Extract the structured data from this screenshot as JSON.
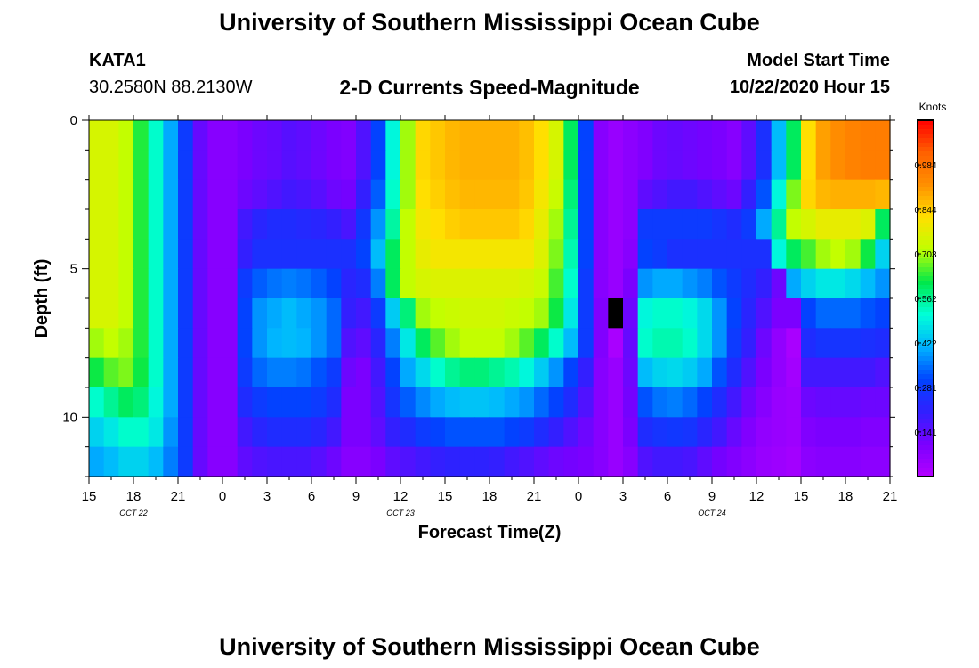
{
  "header": {
    "title_top": "University of Southern Mississippi Ocean Cube",
    "title_bottom": "University of Southern Mississippi Ocean Cube",
    "station": "KATA1",
    "coords": "30.2580N 88.2130W",
    "plot_title": "2-D Currents Speed-Magnitude",
    "model_start_label": "Model Start Time",
    "model_start_value": "10/22/2020 Hour 15"
  },
  "colors": {
    "background": "#ffffff",
    "no_data": "#000000",
    "colormap": [
      "#b400ff",
      "#7a00ff",
      "#3020ff",
      "#0044ff",
      "#00b4ff",
      "#00ffd8",
      "#00e84a",
      "#c0ff00",
      "#ffe000",
      "#ff9000",
      "#ff6000",
      "#ff0000"
    ]
  },
  "chart_data": {
    "type": "heatmap",
    "title": "2-D Currents Speed-Magnitude",
    "xlabel": "Forecast Time(Z)",
    "ylabel": "Depth (ft)",
    "x_range_hours_from_oct22_15z": [
      0,
      54
    ],
    "y_range_ft": [
      0,
      12
    ],
    "y_inverted": true,
    "x_tick_labels": [
      "15",
      "18",
      "21",
      "0",
      "3",
      "6",
      "9",
      "12",
      "15",
      "18",
      "21",
      "0",
      "3",
      "6",
      "9",
      "12",
      "15",
      "18",
      "21"
    ],
    "y_tick_labels": [
      "0",
      "5",
      "10"
    ],
    "date_labels": [
      {
        "text": "OCT  22",
        "after_tick": "18"
      },
      {
        "text": "OCT  23",
        "after_tick": "12"
      },
      {
        "text": "OCT  24",
        "after_tick": "9"
      }
    ],
    "colorbar": {
      "label": "Knots",
      "tick_labels": [
        "0.984",
        "0.844",
        "0.703",
        "0.562",
        "0.422",
        "0.281",
        "0.141"
      ],
      "range": [
        0,
        1.125
      ]
    },
    "depth_bins_ft": [
      0,
      1,
      2,
      3,
      4,
      5,
      6,
      7,
      8,
      9,
      10,
      11
    ],
    "hours": [
      0,
      1,
      2,
      3,
      4,
      5,
      6,
      7,
      8,
      9,
      10,
      11,
      12,
      13,
      14,
      15,
      16,
      17,
      18,
      19,
      20,
      21,
      22,
      23,
      24,
      25,
      26,
      27,
      28,
      29,
      30,
      31,
      32,
      33,
      34,
      35,
      36,
      37,
      38,
      39,
      40,
      41,
      42,
      43,
      44,
      45,
      46,
      47,
      48,
      49,
      50,
      51,
      52,
      53
    ],
    "speed_knots_rows_by_depth": [
      [
        0.75,
        0.75,
        0.72,
        0.63,
        0.52,
        0.4,
        0.28,
        0.13,
        0.08,
        0.08,
        0.1,
        0.12,
        0.13,
        0.15,
        0.14,
        0.12,
        0.1,
        0.09,
        0.16,
        0.3,
        0.5,
        0.7,
        0.83,
        0.85,
        0.87,
        0.88,
        0.88,
        0.88,
        0.88,
        0.86,
        0.82,
        0.75,
        0.6,
        0.3,
        0.08,
        0.05,
        0.07,
        0.09,
        0.12,
        0.13,
        0.12,
        0.11,
        0.1,
        0.08,
        0.14,
        0.25,
        0.42,
        0.6,
        0.82,
        0.9,
        0.93,
        0.95,
        0.96,
        0.96
      ],
      [
        0.75,
        0.75,
        0.72,
        0.63,
        0.52,
        0.4,
        0.28,
        0.13,
        0.08,
        0.08,
        0.1,
        0.12,
        0.13,
        0.15,
        0.14,
        0.12,
        0.1,
        0.09,
        0.16,
        0.3,
        0.5,
        0.7,
        0.83,
        0.85,
        0.87,
        0.88,
        0.88,
        0.88,
        0.88,
        0.86,
        0.82,
        0.75,
        0.6,
        0.3,
        0.08,
        0.05,
        0.07,
        0.09,
        0.12,
        0.13,
        0.12,
        0.11,
        0.1,
        0.08,
        0.14,
        0.25,
        0.42,
        0.6,
        0.82,
        0.9,
        0.93,
        0.95,
        0.96,
        0.96
      ],
      [
        0.75,
        0.75,
        0.72,
        0.63,
        0.52,
        0.4,
        0.28,
        0.13,
        0.08,
        0.08,
        0.12,
        0.14,
        0.16,
        0.18,
        0.17,
        0.15,
        0.12,
        0.11,
        0.2,
        0.33,
        0.52,
        0.7,
        0.82,
        0.84,
        0.86,
        0.87,
        0.87,
        0.87,
        0.87,
        0.85,
        0.8,
        0.73,
        0.58,
        0.3,
        0.08,
        0.05,
        0.07,
        0.14,
        0.16,
        0.18,
        0.18,
        0.16,
        0.14,
        0.12,
        0.2,
        0.32,
        0.5,
        0.68,
        0.83,
        0.87,
        0.88,
        0.88,
        0.88,
        0.87
      ],
      [
        0.75,
        0.75,
        0.72,
        0.63,
        0.52,
        0.4,
        0.28,
        0.13,
        0.08,
        0.08,
        0.18,
        0.22,
        0.24,
        0.24,
        0.23,
        0.22,
        0.2,
        0.17,
        0.27,
        0.38,
        0.55,
        0.72,
        0.8,
        0.82,
        0.84,
        0.85,
        0.85,
        0.85,
        0.85,
        0.83,
        0.78,
        0.7,
        0.56,
        0.3,
        0.08,
        0.05,
        0.07,
        0.28,
        0.28,
        0.28,
        0.28,
        0.28,
        0.26,
        0.24,
        0.28,
        0.4,
        0.56,
        0.72,
        0.75,
        0.78,
        0.78,
        0.78,
        0.76,
        0.6
      ],
      [
        0.75,
        0.75,
        0.72,
        0.63,
        0.52,
        0.4,
        0.28,
        0.13,
        0.08,
        0.08,
        0.2,
        0.25,
        0.25,
        0.25,
        0.25,
        0.25,
        0.25,
        0.25,
        0.3,
        0.42,
        0.6,
        0.72,
        0.78,
        0.8,
        0.8,
        0.8,
        0.8,
        0.8,
        0.8,
        0.8,
        0.76,
        0.68,
        0.54,
        0.3,
        0.08,
        0.05,
        0.08,
        0.3,
        0.28,
        0.25,
        0.25,
        0.25,
        0.25,
        0.25,
        0.25,
        0.25,
        0.5,
        0.6,
        0.65,
        0.7,
        0.72,
        0.7,
        0.62,
        0.45
      ],
      [
        0.75,
        0.75,
        0.72,
        0.63,
        0.52,
        0.4,
        0.28,
        0.13,
        0.08,
        0.08,
        0.28,
        0.33,
        0.35,
        0.36,
        0.35,
        0.33,
        0.3,
        0.22,
        0.24,
        0.36,
        0.6,
        0.72,
        0.75,
        0.76,
        0.76,
        0.76,
        0.76,
        0.76,
        0.76,
        0.75,
        0.73,
        0.65,
        0.52,
        0.28,
        0.08,
        0.05,
        0.1,
        0.38,
        0.4,
        0.4,
        0.38,
        0.36,
        0.32,
        0.28,
        0.24,
        0.2,
        0.12,
        0.4,
        0.45,
        0.48,
        0.48,
        0.46,
        0.42,
        0.38
      ],
      [
        0.75,
        0.75,
        0.72,
        0.63,
        0.52,
        0.4,
        0.28,
        0.13,
        0.08,
        0.08,
        0.3,
        0.38,
        0.4,
        0.42,
        0.4,
        0.38,
        0.34,
        0.2,
        0.18,
        0.28,
        0.44,
        0.58,
        0.7,
        0.72,
        0.73,
        0.74,
        0.74,
        0.74,
        0.73,
        0.72,
        0.7,
        0.62,
        0.48,
        0.28,
        0.09,
        -1,
        0.12,
        0.5,
        0.52,
        0.52,
        0.5,
        0.46,
        0.38,
        0.3,
        0.22,
        0.16,
        0.1,
        0.1,
        0.3,
        0.34,
        0.34,
        0.34,
        0.32,
        0.3
      ],
      [
        0.7,
        0.72,
        0.7,
        0.63,
        0.52,
        0.4,
        0.28,
        0.13,
        0.08,
        0.08,
        0.3,
        0.38,
        0.41,
        0.42,
        0.41,
        0.38,
        0.34,
        0.16,
        0.14,
        0.22,
        0.36,
        0.48,
        0.6,
        0.66,
        0.7,
        0.72,
        0.72,
        0.72,
        0.7,
        0.66,
        0.6,
        0.52,
        0.42,
        0.28,
        0.09,
        0.02,
        0.13,
        0.52,
        0.54,
        0.54,
        0.52,
        0.46,
        0.38,
        0.28,
        0.2,
        0.12,
        0.06,
        0.02,
        0.24,
        0.26,
        0.26,
        0.26,
        0.25,
        0.24
      ],
      [
        0.62,
        0.66,
        0.68,
        0.62,
        0.52,
        0.4,
        0.28,
        0.13,
        0.08,
        0.08,
        0.28,
        0.34,
        0.36,
        0.36,
        0.35,
        0.32,
        0.28,
        0.12,
        0.1,
        0.18,
        0.3,
        0.4,
        0.46,
        0.52,
        0.56,
        0.58,
        0.58,
        0.56,
        0.54,
        0.5,
        0.44,
        0.38,
        0.3,
        0.2,
        0.08,
        0.05,
        0.12,
        0.42,
        0.45,
        0.46,
        0.44,
        0.4,
        0.32,
        0.24,
        0.16,
        0.1,
        0.06,
        0.03,
        0.18,
        0.18,
        0.18,
        0.18,
        0.18,
        0.16
      ],
      [
        0.52,
        0.56,
        0.6,
        0.58,
        0.5,
        0.4,
        0.28,
        0.13,
        0.08,
        0.08,
        0.24,
        0.28,
        0.3,
        0.3,
        0.3,
        0.28,
        0.24,
        0.1,
        0.1,
        0.16,
        0.26,
        0.33,
        0.37,
        0.4,
        0.42,
        0.43,
        0.43,
        0.42,
        0.4,
        0.38,
        0.34,
        0.3,
        0.24,
        0.16,
        0.08,
        0.05,
        0.11,
        0.32,
        0.35,
        0.36,
        0.34,
        0.3,
        0.24,
        0.18,
        0.12,
        0.08,
        0.05,
        0.04,
        0.12,
        0.13,
        0.13,
        0.13,
        0.12,
        0.12
      ],
      [
        0.45,
        0.48,
        0.52,
        0.52,
        0.48,
        0.38,
        0.28,
        0.13,
        0.08,
        0.08,
        0.18,
        0.22,
        0.24,
        0.24,
        0.24,
        0.22,
        0.18,
        0.1,
        0.1,
        0.14,
        0.2,
        0.24,
        0.28,
        0.3,
        0.32,
        0.32,
        0.32,
        0.32,
        0.3,
        0.28,
        0.24,
        0.2,
        0.16,
        0.12,
        0.08,
        0.05,
        0.1,
        0.24,
        0.26,
        0.27,
        0.26,
        0.22,
        0.18,
        0.13,
        0.09,
        0.06,
        0.05,
        0.04,
        0.09,
        0.1,
        0.1,
        0.1,
        0.09,
        0.09
      ],
      [
        0.4,
        0.42,
        0.45,
        0.45,
        0.42,
        0.36,
        0.28,
        0.13,
        0.08,
        0.08,
        0.14,
        0.16,
        0.17,
        0.17,
        0.17,
        0.15,
        0.12,
        0.08,
        0.08,
        0.1,
        0.14,
        0.16,
        0.18,
        0.2,
        0.21,
        0.21,
        0.21,
        0.2,
        0.18,
        0.16,
        0.14,
        0.12,
        0.11,
        0.1,
        0.08,
        0.05,
        0.08,
        0.16,
        0.18,
        0.18,
        0.17,
        0.14,
        0.11,
        0.09,
        0.07,
        0.05,
        0.04,
        0.03,
        0.07,
        0.08,
        0.08,
        0.08,
        0.07,
        0.07
      ]
    ]
  }
}
